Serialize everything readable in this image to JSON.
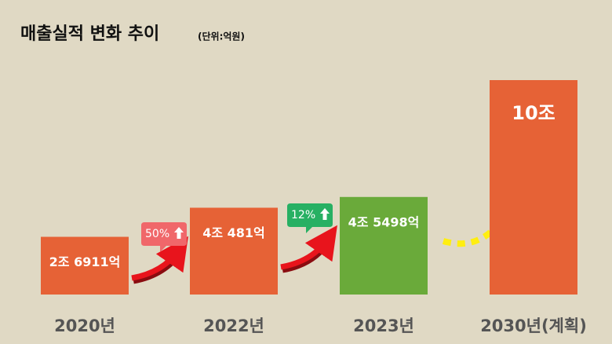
{
  "chart_data": {
    "type": "bar",
    "title": "매출실적 변화 추이",
    "subtitle": "(단위:억원)",
    "categories": [
      "2020년",
      "2022년",
      "2023년",
      "2030년(계획)"
    ],
    "values": [
      26911,
      40481,
      45498,
      100000
    ],
    "value_labels": [
      "2조 6911억",
      "4조 481억",
      "4조 5498억",
      "10조"
    ],
    "colors": [
      "#e66236",
      "#e66236",
      "#6aaa3a",
      "#e66236"
    ],
    "ylim": [
      0,
      100000
    ],
    "annotations": [
      {
        "text": "50%",
        "color": "#f0676a"
      },
      {
        "text": "12%",
        "color": "#27b063"
      }
    ]
  }
}
